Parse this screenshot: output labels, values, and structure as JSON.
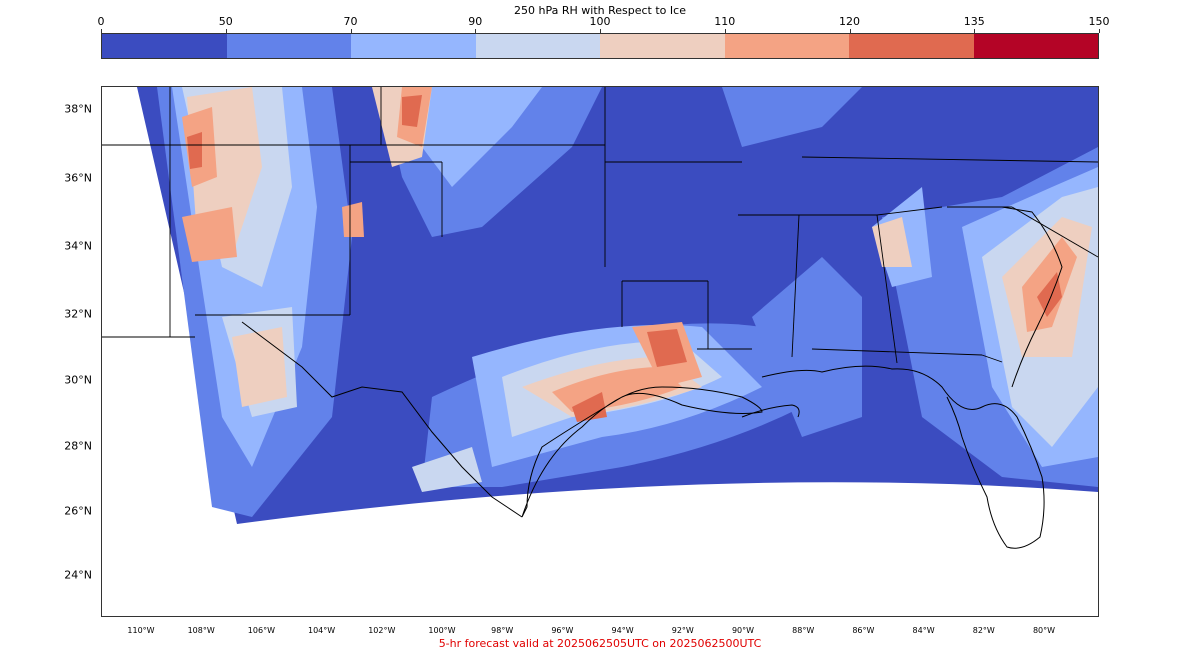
{
  "colorbar": {
    "title": "250 hPa RH with Respect to Ice",
    "ticks": [
      "0",
      "50",
      "70",
      "90",
      "100",
      "110",
      "120",
      "135",
      "150"
    ],
    "colors": [
      "#3b4cc0",
      "#6282ea",
      "#95b6fe",
      "#c9d7f0",
      "#eecfc0",
      "#f4a384",
      "#e06a50",
      "#b40426"
    ]
  },
  "map": {
    "lat_labels": [
      "38°N",
      "36°N",
      "34°N",
      "32°N",
      "30°N",
      "28°N",
      "26°N",
      "24°N"
    ],
    "lon_labels": [
      "110°W",
      "108°W",
      "106°W",
      "104°W",
      "102°W",
      "100°W",
      "98°W",
      "96°W",
      "94°W",
      "92°W",
      "90°W",
      "88°W",
      "86°W",
      "84°W",
      "82°W",
      "80°W"
    ]
  },
  "footer": {
    "text": "5-hr forecast valid at 2025062505UTC on 2025062500UTC"
  }
}
